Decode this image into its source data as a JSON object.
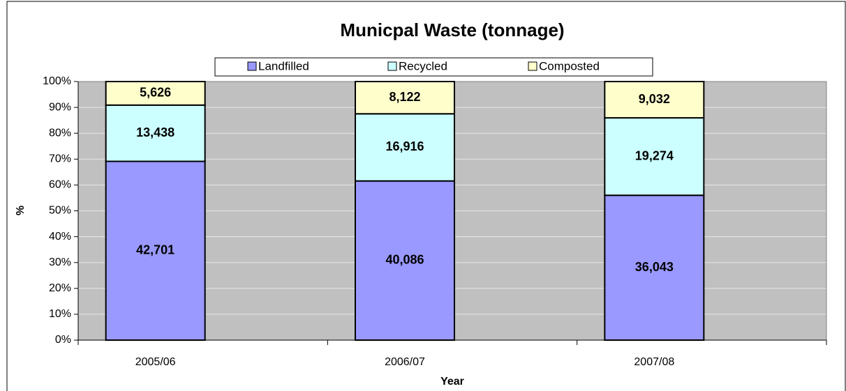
{
  "chart_data": {
    "type": "bar",
    "stacking": "percent",
    "title": "Municpal Waste (tonnage)",
    "x_label": "Year",
    "y_label": "%",
    "categories": [
      "2005/06",
      "2006/07",
      "2007/08"
    ],
    "series": [
      {
        "name": "Landfilled",
        "color": "#9999ff",
        "values": [
          42701,
          40086,
          36043
        ],
        "value_labels": [
          "42,701",
          "40,086",
          "36,043"
        ]
      },
      {
        "name": "Recycled",
        "color": "#ccffff",
        "values": [
          13438,
          16916,
          19274
        ],
        "value_labels": [
          "13,438",
          "16,916",
          "19,274"
        ]
      },
      {
        "name": "Composted",
        "color": "#ffffcc",
        "values": [
          5626,
          8122,
          9032
        ],
        "value_labels": [
          "5,626",
          "8,122",
          "9,032"
        ]
      }
    ],
    "ylim": [
      0,
      100
    ],
    "yticks": [
      {
        "value": 0,
        "label": "0%"
      },
      {
        "value": 10,
        "label": "10%"
      },
      {
        "value": 20,
        "label": "20%"
      },
      {
        "value": 30,
        "label": "30%"
      },
      {
        "value": 40,
        "label": "40%"
      },
      {
        "value": 50,
        "label": "50%"
      },
      {
        "value": 60,
        "label": "60%"
      },
      {
        "value": 70,
        "label": "70%"
      },
      {
        "value": 80,
        "label": "80%"
      },
      {
        "value": 90,
        "label": "90%"
      },
      {
        "value": 100,
        "label": "100%"
      }
    ],
    "grid": true,
    "legend": "top"
  }
}
